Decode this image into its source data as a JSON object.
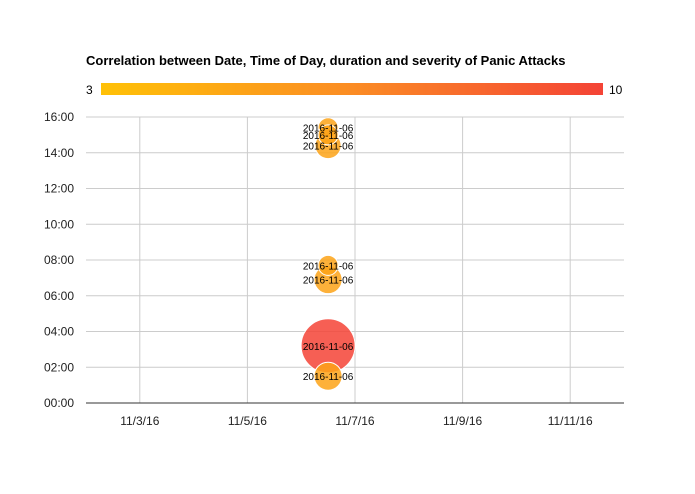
{
  "chart_data": {
    "type": "bubble",
    "title": "Correlation between Date, Time of Day, duration and severity of Panic Attacks",
    "xlabel": "",
    "ylabel": "",
    "x_ticks": [
      "11/3/16",
      "11/5/16",
      "11/7/16",
      "11/9/16",
      "11/11/16"
    ],
    "y_ticks": [
      "00:00",
      "02:00",
      "04:00",
      "06:00",
      "08:00",
      "10:00",
      "12:00",
      "14:00",
      "16:00"
    ],
    "xlim_days": [
      0,
      10
    ],
    "x_tick_days": [
      1,
      3,
      5,
      7,
      9
    ],
    "ylim_hours": [
      0,
      16
    ],
    "color_axis": {
      "min": 3,
      "max": 10,
      "min_label": "3",
      "max_label": "10",
      "colors": [
        "#ffc107",
        "#fb8c24",
        "#f44336"
      ]
    },
    "points": [
      {
        "label": "2016-11-06",
        "day": 4.5,
        "hour": 15.4,
        "severity": 5,
        "size": 10
      },
      {
        "label": "2016-11-06",
        "day": 4.5,
        "hour": 15.0,
        "severity": 5,
        "size": 10
      },
      {
        "label": "2016-11-06",
        "day": 4.5,
        "hour": 14.4,
        "severity": 5,
        "size": 13
      },
      {
        "label": "2016-11-06",
        "day": 4.5,
        "hour": 7.7,
        "severity": 5,
        "size": 10
      },
      {
        "label": "2016-11-06",
        "day": 4.5,
        "hour": 6.9,
        "severity": 5,
        "size": 14
      },
      {
        "label": "2016-11-06",
        "day": 4.5,
        "hour": 3.2,
        "severity": 10,
        "size": 27
      },
      {
        "label": "2016-11-06",
        "day": 4.5,
        "hour": 1.5,
        "severity": 5,
        "size": 14
      }
    ]
  }
}
